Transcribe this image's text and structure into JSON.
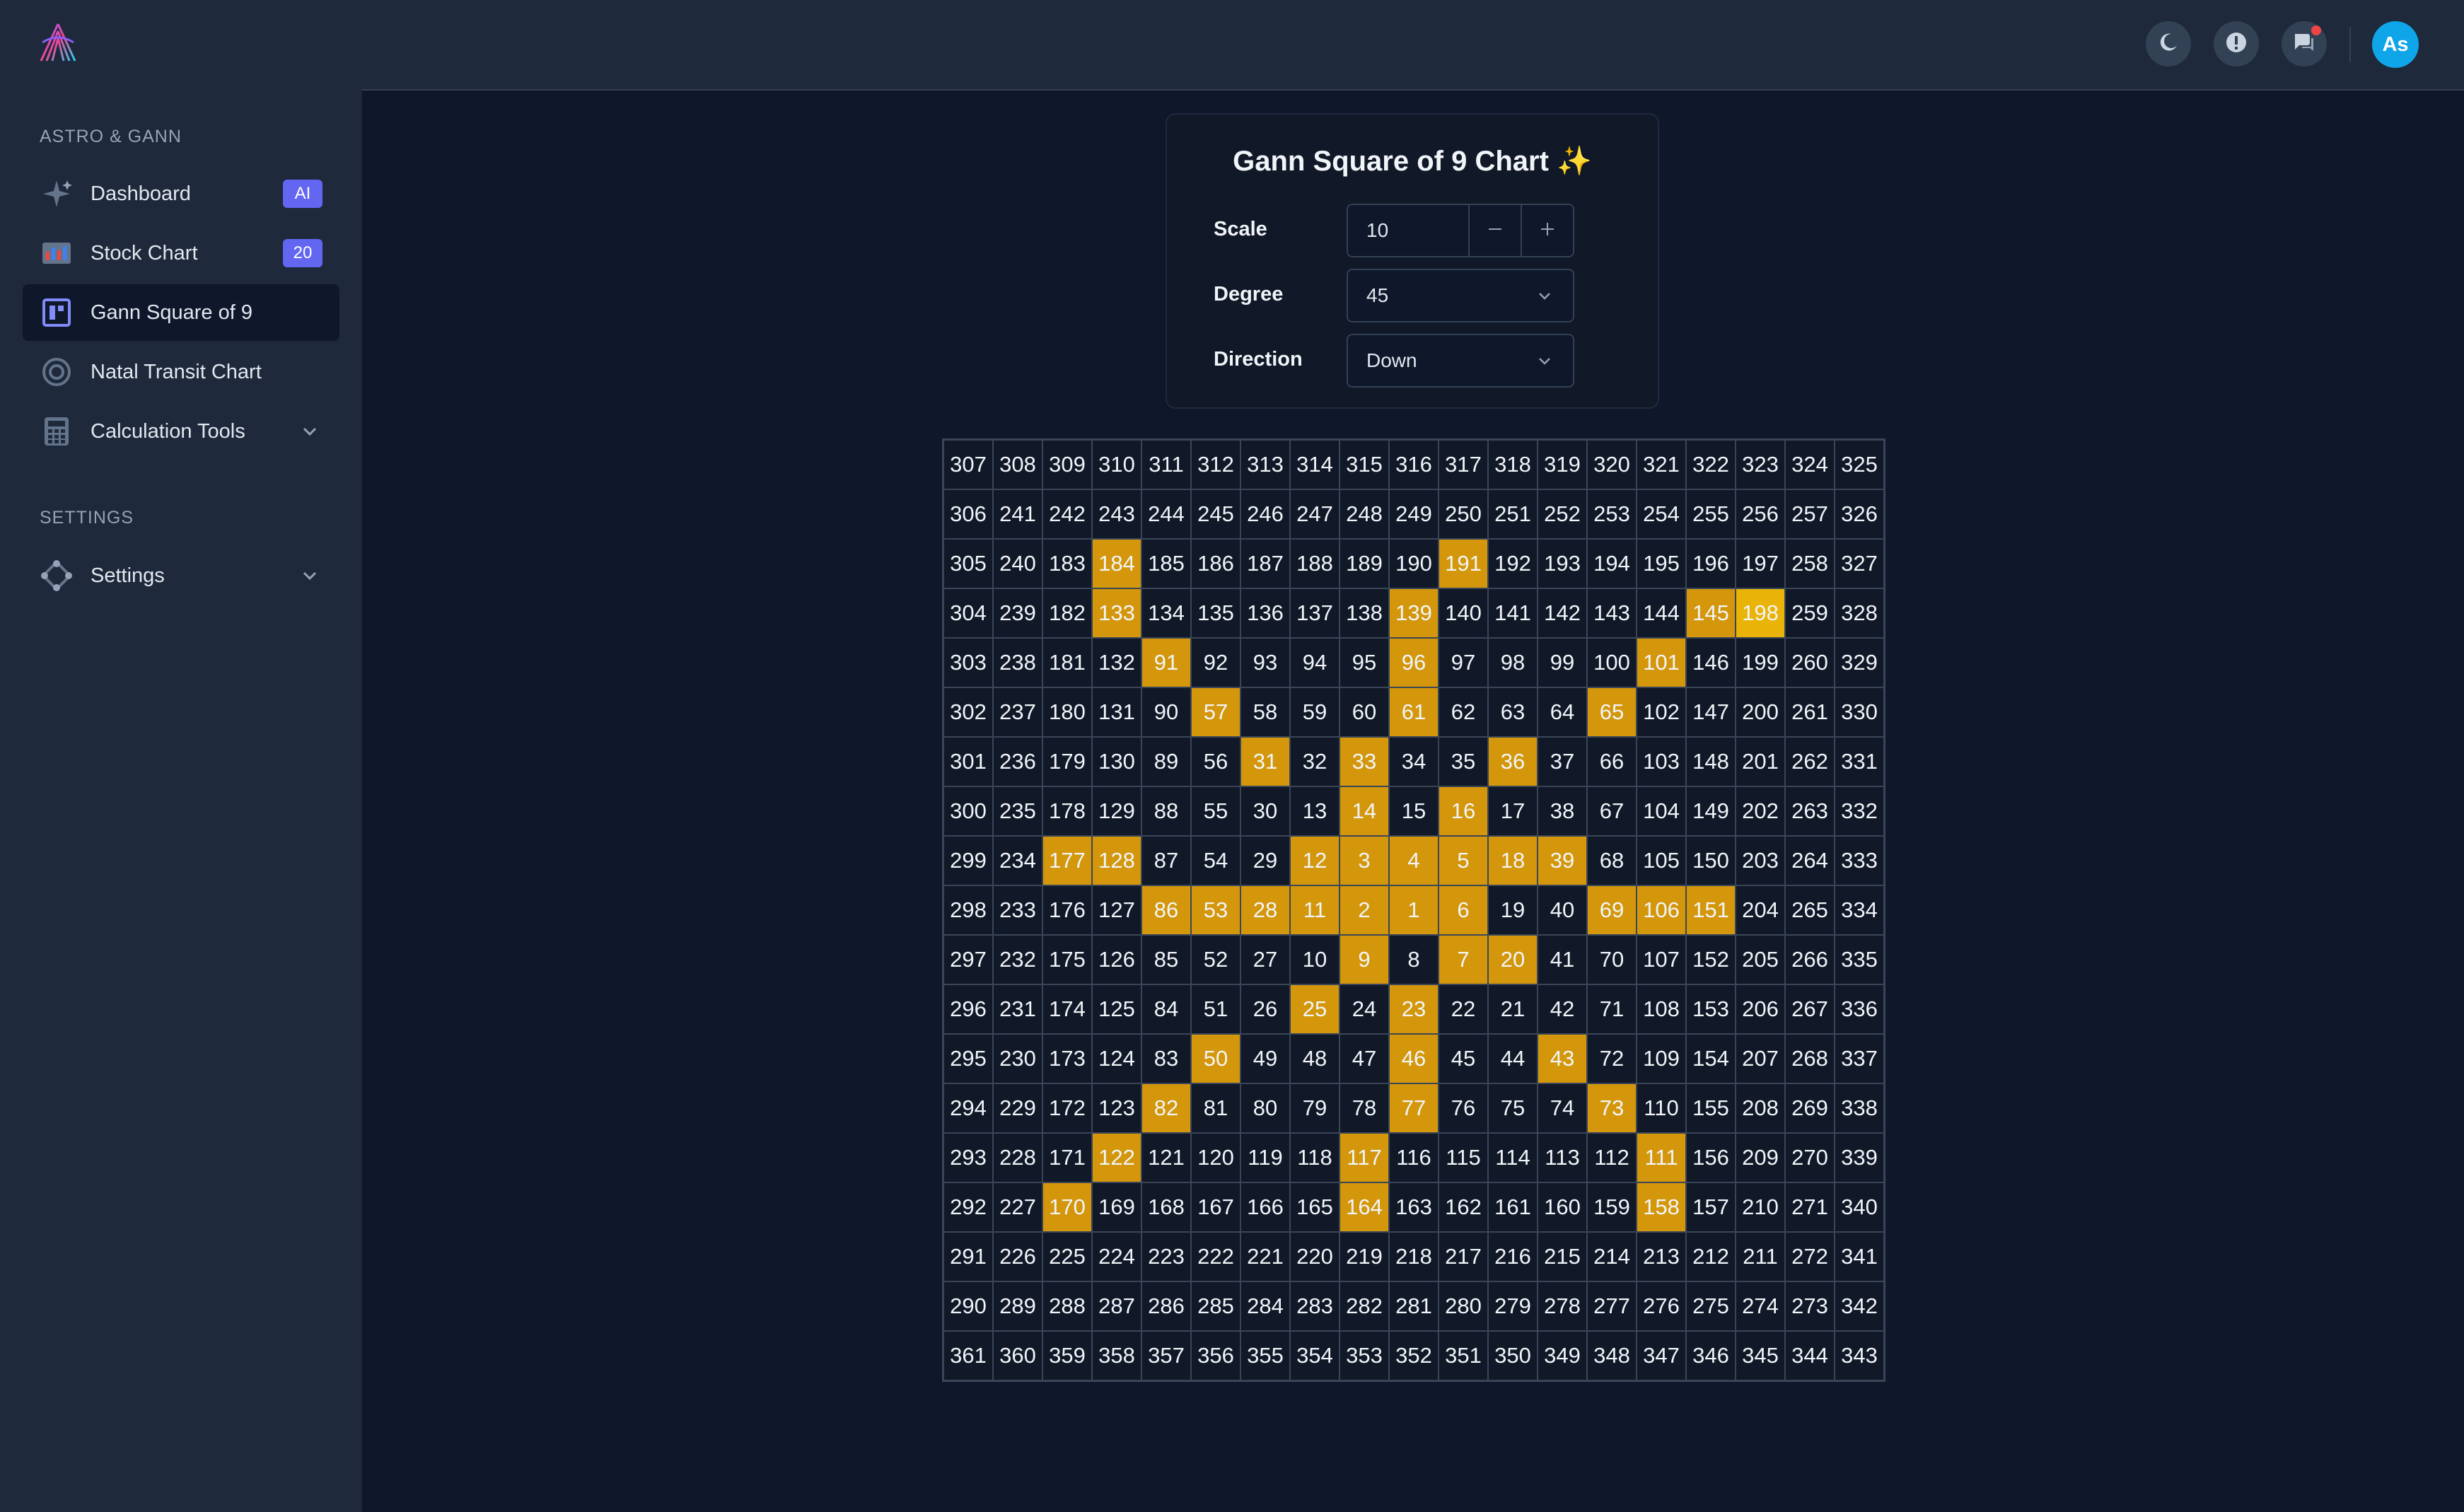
{
  "sidebar": {
    "section_main": "ASTRO & GANN",
    "items": [
      {
        "label": "Dashboard",
        "badge": "AI"
      },
      {
        "label": "Stock Chart",
        "badge": "20"
      },
      {
        "label": "Gann Square of 9"
      },
      {
        "label": "Natal Transit Chart"
      },
      {
        "label": "Calculation Tools"
      }
    ],
    "section_settings": "SETTINGS",
    "settings_label": "Settings"
  },
  "header": {
    "avatar_initials": "As",
    "icons": [
      "moon-icon",
      "alert-icon",
      "chat-icon"
    ]
  },
  "panel": {
    "title": "Gann Square of 9 Chart ✨",
    "scale_label": "Scale",
    "scale_value": "10",
    "degree_label": "Degree",
    "degree_value": "45",
    "direction_label": "Direction",
    "direction_value": "Down"
  },
  "colors": {
    "highlight": "#d4970b",
    "highlight_strong": "#eab308",
    "accent": "#6366f1",
    "avatar": "#0ea5e9"
  },
  "grid": {
    "rows": [
      [
        307,
        308,
        309,
        310,
        311,
        312,
        313,
        314,
        315,
        316,
        317,
        318,
        319,
        320,
        321,
        322,
        323,
        324,
        325
      ],
      [
        306,
        241,
        242,
        243,
        244,
        245,
        246,
        247,
        248,
        249,
        250,
        251,
        252,
        253,
        254,
        255,
        256,
        257,
        326
      ],
      [
        305,
        240,
        183,
        184,
        185,
        186,
        187,
        188,
        189,
        190,
        191,
        192,
        193,
        194,
        195,
        196,
        197,
        258,
        327
      ],
      [
        304,
        239,
        182,
        133,
        134,
        135,
        136,
        137,
        138,
        139,
        140,
        141,
        142,
        143,
        144,
        145,
        198,
        259,
        328
      ],
      [
        303,
        238,
        181,
        132,
        91,
        92,
        93,
        94,
        95,
        96,
        97,
        98,
        99,
        100,
        101,
        146,
        199,
        260,
        329
      ],
      [
        302,
        237,
        180,
        131,
        90,
        57,
        58,
        59,
        60,
        61,
        62,
        63,
        64,
        65,
        102,
        147,
        200,
        261,
        330
      ],
      [
        301,
        236,
        179,
        130,
        89,
        56,
        31,
        32,
        33,
        34,
        35,
        36,
        37,
        66,
        103,
        148,
        201,
        262,
        331
      ],
      [
        300,
        235,
        178,
        129,
        88,
        55,
        30,
        13,
        14,
        15,
        16,
        17,
        38,
        67,
        104,
        149,
        202,
        263,
        332
      ],
      [
        299,
        234,
        177,
        128,
        87,
        54,
        29,
        12,
        3,
        4,
        5,
        18,
        39,
        68,
        105,
        150,
        203,
        264,
        333
      ],
      [
        298,
        233,
        176,
        127,
        86,
        53,
        28,
        11,
        2,
        1,
        6,
        19,
        40,
        69,
        106,
        151,
        204,
        265,
        334
      ],
      [
        297,
        232,
        175,
        126,
        85,
        52,
        27,
        10,
        9,
        8,
        7,
        20,
        41,
        70,
        107,
        152,
        205,
        266,
        335
      ],
      [
        296,
        231,
        174,
        125,
        84,
        51,
        26,
        25,
        24,
        23,
        22,
        21,
        42,
        71,
        108,
        153,
        206,
        267,
        336
      ],
      [
        295,
        230,
        173,
        124,
        83,
        50,
        49,
        48,
        47,
        46,
        45,
        44,
        43,
        72,
        109,
        154,
        207,
        268,
        337
      ],
      [
        294,
        229,
        172,
        123,
        82,
        81,
        80,
        79,
        78,
        77,
        76,
        75,
        74,
        73,
        110,
        155,
        208,
        269,
        338
      ],
      [
        293,
        228,
        171,
        122,
        121,
        120,
        119,
        118,
        117,
        116,
        115,
        114,
        113,
        112,
        111,
        156,
        209,
        270,
        339
      ],
      [
        292,
        227,
        170,
        169,
        168,
        167,
        166,
        165,
        164,
        163,
        162,
        161,
        160,
        159,
        158,
        157,
        210,
        271,
        340
      ],
      [
        291,
        226,
        225,
        224,
        223,
        222,
        221,
        220,
        219,
        218,
        217,
        216,
        215,
        214,
        213,
        212,
        211,
        272,
        341
      ],
      [
        290,
        289,
        288,
        287,
        286,
        285,
        284,
        283,
        282,
        281,
        280,
        279,
        278,
        277,
        276,
        275,
        274,
        273,
        342
      ],
      [
        361,
        360,
        359,
        358,
        357,
        356,
        355,
        354,
        353,
        352,
        351,
        350,
        349,
        348,
        347,
        346,
        345,
        344,
        343
      ]
    ],
    "highlighted": [
      184,
      191,
      133,
      139,
      145,
      91,
      96,
      101,
      57,
      61,
      65,
      31,
      33,
      36,
      14,
      16,
      177,
      128,
      12,
      3,
      4,
      5,
      18,
      39,
      86,
      53,
      28,
      11,
      2,
      1,
      6,
      69,
      106,
      151,
      9,
      7,
      20,
      25,
      23,
      50,
      46,
      43,
      82,
      77,
      73,
      122,
      117,
      111,
      170,
      164,
      158
    ],
    "highlighted_strong": [
      198
    ]
  }
}
